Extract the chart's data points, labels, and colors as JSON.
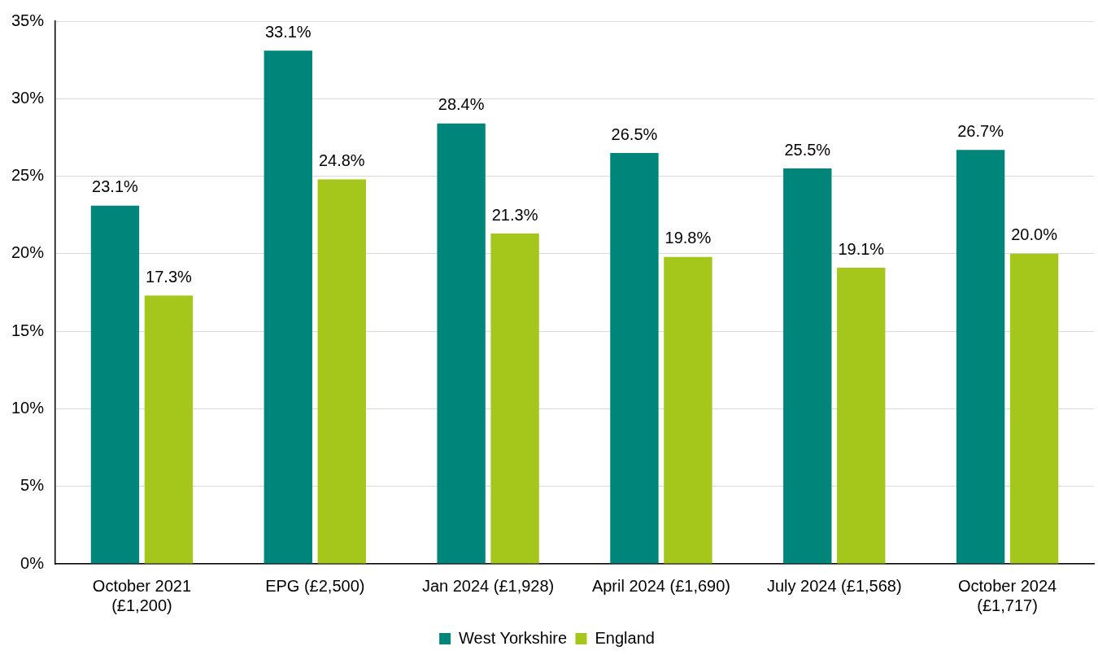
{
  "chart_data": {
    "type": "bar",
    "categories": [
      "October 2021 (£1,200)",
      "EPG (£2,500)",
      "Jan 2024 (£1,928)",
      "April 2024 (£1,690)",
      "July 2024 (£1,568)",
      "October 2024 (£1,717)"
    ],
    "series": [
      {
        "name": "West Yorkshire",
        "color": "#00857a",
        "values": [
          23.1,
          33.1,
          28.4,
          26.5,
          25.5,
          26.7
        ],
        "value_labels": [
          "23.1%",
          "33.1%",
          "28.4%",
          "26.5%",
          "25.5%",
          "26.7%"
        ]
      },
      {
        "name": "England",
        "color": "#a5c61a",
        "values": [
          17.3,
          24.8,
          21.3,
          19.8,
          19.1,
          20.0
        ],
        "value_labels": [
          "17.3%",
          "24.8%",
          "21.3%",
          "19.8%",
          "19.1%",
          "20.0%"
        ]
      }
    ],
    "ylim": [
      0,
      35
    ],
    "yticks": [
      {
        "value": 0,
        "label": "0%"
      },
      {
        "value": 5,
        "label": "5%"
      },
      {
        "value": 10,
        "label": "10%"
      },
      {
        "value": 15,
        "label": "15%"
      },
      {
        "value": 20,
        "label": "20%"
      },
      {
        "value": 25,
        "label": "25%"
      },
      {
        "value": 30,
        "label": "30%"
      },
      {
        "value": 35,
        "label": "35%"
      }
    ],
    "grid": "y",
    "legend": "bottom"
  }
}
